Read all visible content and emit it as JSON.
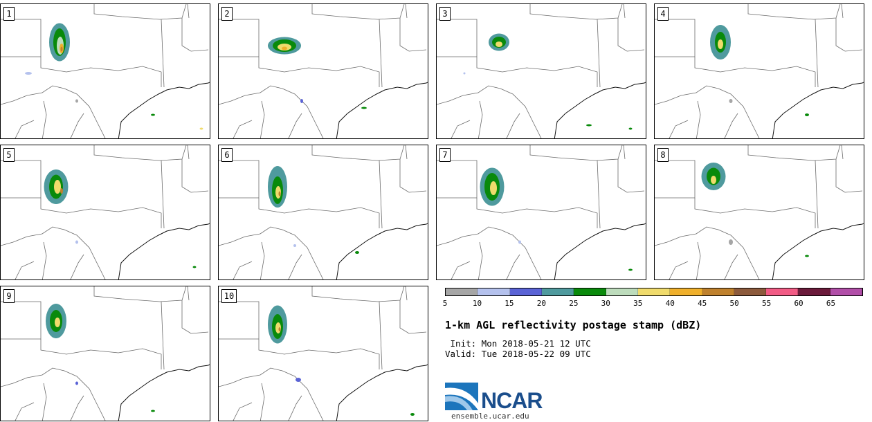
{
  "panels": [
    {
      "label": "1"
    },
    {
      "label": "2"
    },
    {
      "label": "3"
    },
    {
      "label": "4"
    },
    {
      "label": "5"
    },
    {
      "label": "6"
    },
    {
      "label": "7"
    },
    {
      "label": "8"
    },
    {
      "label": "9"
    },
    {
      "label": "10"
    }
  ],
  "colorbar": {
    "colors": [
      "#a6a6a6",
      "#b4c1ed",
      "#5a63d6",
      "#4f9a9e",
      "#098a0b",
      "#bddcbc",
      "#f0db6c",
      "#f0b02b",
      "#bf812d",
      "#8c5a3c",
      "#f25b85",
      "#6b1a3b",
      "#b14ea8"
    ],
    "ticks": [
      "5",
      "10",
      "15",
      "20",
      "25",
      "30",
      "35",
      "40",
      "45",
      "50",
      "55",
      "60",
      "65"
    ]
  },
  "title": "1-km AGL reflectivity postage stamp (dBZ)",
  "init_line": " Init: Mon 2018-05-21 12 UTC",
  "valid_line": "Valid: Tue 2018-05-22 09 UTC",
  "logo": {
    "text": "NCAR",
    "url": "ensemble.ucar.edu"
  }
}
